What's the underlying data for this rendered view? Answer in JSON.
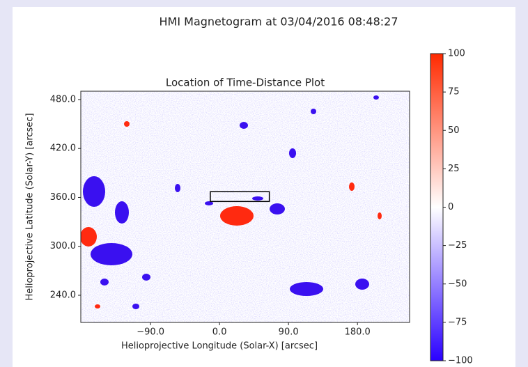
{
  "chart_data": {
    "type": "image",
    "title": "HMI Magnetogram at 03/04/2016 08:48:27",
    "subtitle": "Location of Time-Distance Plot",
    "x_label": "Helioprojective Longitude (Solar-X) [arcsec]",
    "y_label": "Helioprojective Latitude (Solar-Y) [arcsec]",
    "xlim": [
      -181,
      248
    ],
    "ylim": [
      206.7,
      490.2
    ],
    "xticks": [
      {
        "value": -90,
        "label": "−90.0"
      },
      {
        "value": 0,
        "label": "0.0"
      },
      {
        "value": 90,
        "label": "90.0"
      },
      {
        "value": 180,
        "label": "180.0"
      }
    ],
    "yticks": [
      {
        "value": 240,
        "label": "240.0"
      },
      {
        "value": 300,
        "label": "300.0"
      },
      {
        "value": 360,
        "label": "360.0"
      },
      {
        "value": 420,
        "label": "420.0"
      },
      {
        "value": 480,
        "label": "480.0"
      }
    ],
    "box": {
      "x": [
        -12,
        65
      ],
      "y": [
        355,
        367
      ]
    },
    "colormap": [
      "#2a00ff",
      "#ffffff",
      "#ff2a00"
    ],
    "clim": [
      -100,
      100
    ],
    "cticks": [
      {
        "value": -100,
        "label": "−100"
      },
      {
        "value": -75,
        "label": "−75"
      },
      {
        "value": -50,
        "label": "−50"
      },
      {
        "value": -25,
        "label": "−25"
      },
      0,
      25,
      50,
      75,
      100
    ]
  }
}
